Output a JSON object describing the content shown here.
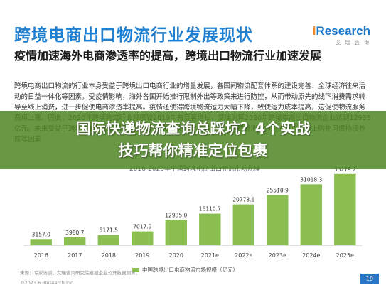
{
  "slide": {
    "title": "跨境电商出口物流行业发展现状",
    "logo_mark_i": "i",
    "logo_mark_rest": "Research",
    "logo_sub": "艾 瑞 咨 询",
    "subtitle": "疫情加速海外电商渗透率的提高，跨境出口物流行业加速发展",
    "body": "跨境电商出口物流的行业本身受益于跨境出口电商行业的增量发展，各国间物流配套体系的建设完善、全球经济往来活动的日益一体化等因素。受疫情影响，海外各国开始推行限制外出等政策来进行防控，从而带动原先的线下消费需求转导至线上消费，进一步促使电商渗透率提高。疫情还使得跨境物流运力大幅下降，致使运力成本提高，这促使物流服务费用上涨。因此，2020年跨境物流行业规模较2019年有显著增长，艾瑞测算2020年跨境电商出口物流企业达到12935亿元。未来受益于跨境电商贸易国家不断增加、出海品类丰富多样，海外消费者消费力的恢复以及线上购物习惯持续养成等因素",
    "chart_title": "2016-2025年中国跨境电商出口物流市场规模",
    "legend": "中国跨境出口电商物流市场规模（亿元）",
    "source": "来源：专家访谈，艾瑞咨询研究院根据企业公开数据测算。",
    "copyright": "©2021.6 iResearch Inc.",
    "page": "19",
    "overlay_line1": "国际快递物流查询总踩坑？4个实战",
    "overlay_line2": "技巧帮你精准定位包裹"
  },
  "colors": {
    "title_blue": "#1f7fd1",
    "bar_green": "#8cbf52",
    "overlay_green": "#4e8622"
  },
  "chart_data": {
    "type": "bar",
    "title": "2016-2025年中国跨境电商出口物流市场规模",
    "categories": [
      "2016",
      "2017",
      "2018",
      "2019",
      "2020",
      "2021e",
      "2022e",
      "2023e",
      "2024e",
      "2025e"
    ],
    "series": [
      {
        "name": "中国跨境出口电商物流市场规模（亿元）",
        "values": [
          3157.0,
          3980.7,
          5171.5,
          7017.9,
          12935.0,
          16110.7,
          20773.6,
          25510.9,
          31018.3,
          36279.2
        ]
      }
    ],
    "value_labels": [
      "3157.0",
      "3980.7",
      "5171.5",
      "7017.9",
      "12935.0",
      "16110.7",
      "20773.6",
      "25510.9",
      "31018.3",
      "36279.2"
    ],
    "ylim": [
      0,
      38000
    ],
    "grid": false,
    "legend_position": "bottom"
  }
}
